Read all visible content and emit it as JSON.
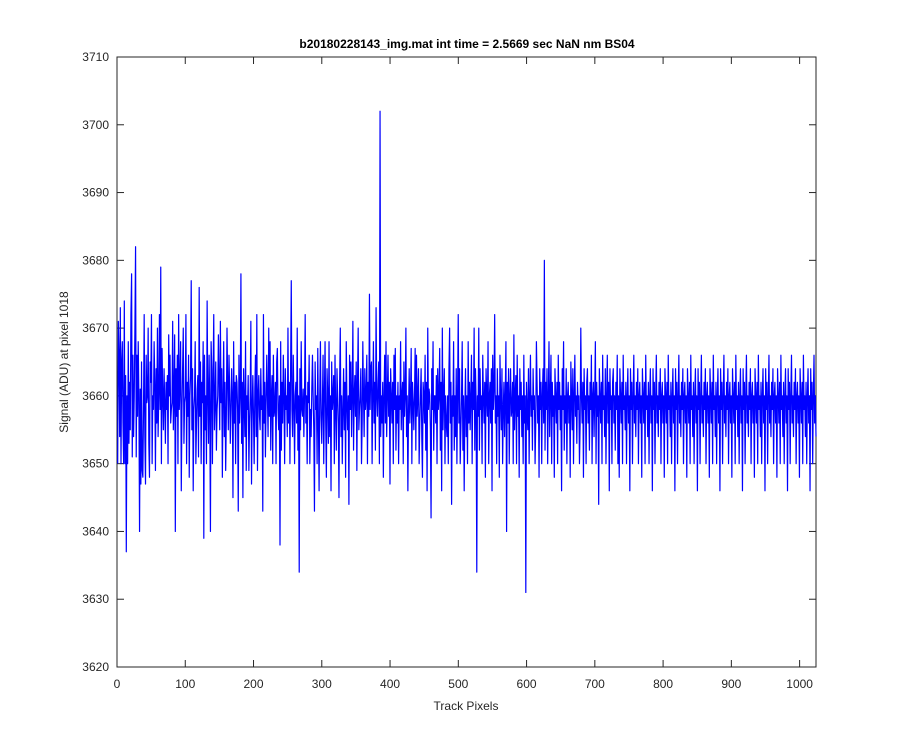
{
  "chart_data": {
    "type": "line",
    "title": "b20180228143_img.mat int time = 2.5669 sec  NaN nm BS04",
    "xlabel": "Track Pixels",
    "ylabel": "Signal (ADU) at pixel 1018",
    "xlim": [
      0,
      1024
    ],
    "ylim": [
      3620,
      3710
    ],
    "xticks": [
      0,
      100,
      200,
      300,
      400,
      500,
      600,
      700,
      800,
      900,
      1000
    ],
    "yticks": [
      3620,
      3630,
      3640,
      3650,
      3660,
      3670,
      3680,
      3690,
      3700,
      3710
    ],
    "grid": false,
    "series": [
      {
        "color": "#0000ff",
        "sampling_note_free": true,
        "x_start": 1,
        "x_step": 1,
        "values": [
          3650,
          3671,
          3666,
          3654,
          3673,
          3650,
          3665,
          3668,
          3656,
          3650,
          3674,
          3650,
          3663,
          3637,
          3660,
          3650,
          3668,
          3653,
          3662,
          3655,
          3672,
          3678,
          3651,
          3666,
          3654,
          3660,
          3670,
          3682,
          3651,
          3666,
          3657,
          3668,
          3660,
          3640,
          3661,
          3647,
          3665,
          3649,
          3648,
          3658,
          3672,
          3654,
          3647,
          3666,
          3659,
          3660,
          3670,
          3653,
          3648,
          3665,
          3662,
          3672,
          3650,
          3660,
          3658,
          3668,
          3662,
          3649,
          3664,
          3656,
          3670,
          3654,
          3660,
          3672,
          3658,
          3679,
          3650,
          3667,
          3660,
          3655,
          3664,
          3659,
          3653,
          3662,
          3658,
          3663,
          3650,
          3669,
          3660,
          3666,
          3656,
          3658,
          3659,
          3671,
          3655,
          3660,
          3669,
          3640,
          3664,
          3657,
          3666,
          3650,
          3672,
          3658,
          3662,
          3668,
          3646,
          3658,
          3664,
          3670,
          3653,
          3659,
          3660,
          3672,
          3650,
          3662,
          3657,
          3666,
          3648,
          3660,
          3663,
          3677,
          3655,
          3664,
          3646,
          3658,
          3660,
          3668,
          3650,
          3656,
          3661,
          3663,
          3651,
          3676,
          3657,
          3665,
          3650,
          3662,
          3659,
          3668,
          3639,
          3666,
          3655,
          3660,
          3650,
          3674,
          3660,
          3653,
          3666,
          3658,
          3640,
          3668,
          3664,
          3650,
          3663,
          3672,
          3655,
          3659,
          3665,
          3652,
          3658,
          3660,
          3669,
          3662,
          3655,
          3671,
          3659,
          3664,
          3648,
          3660,
          3668,
          3654,
          3662,
          3649,
          3657,
          3670,
          3662,
          3655,
          3666,
          3661,
          3653,
          3658,
          3664,
          3660,
          3645,
          3668,
          3656,
          3662,
          3650,
          3663,
          3662,
          3658,
          3643,
          3666,
          3656,
          3660,
          3678,
          3653,
          3662,
          3645,
          3664,
          3659,
          3654,
          3668,
          3649,
          3660,
          3658,
          3663,
          3649,
          3656,
          3660,
          3671,
          3647,
          3658,
          3663,
          3657,
          3650,
          3661,
          3666,
          3654,
          3672,
          3649,
          3660,
          3663,
          3657,
          3655,
          3664,
          3658,
          3660,
          3643,
          3672,
          3656,
          3662,
          3651,
          3659,
          3666,
          3660,
          3654,
          3670,
          3657,
          3668,
          3652,
          3660,
          3663,
          3650,
          3666,
          3657,
          3658,
          3662,
          3650,
          3665,
          3667,
          3658,
          3655,
          3660,
          3638,
          3668,
          3652,
          3662,
          3656,
          3666,
          3660,
          3650,
          3664,
          3658,
          3660,
          3654,
          3670,
          3656,
          3662,
          3650,
          3664,
          3677,
          3658,
          3654,
          3666,
          3659,
          3650,
          3660,
          3662,
          3656,
          3670,
          3652,
          3660,
          3634,
          3664,
          3655,
          3668,
          3658,
          3657,
          3661,
          3654,
          3660,
          3672,
          3656,
          3660,
          3650,
          3662,
          3659,
          3666,
          3650,
          3658,
          3654,
          3661,
          3666,
          3660,
          3655,
          3643,
          3665,
          3658,
          3660,
          3650,
          3667,
          3656,
          3646,
          3660,
          3668,
          3657,
          3653,
          3659,
          3666,
          3650,
          3660,
          3668,
          3656,
          3648,
          3664,
          3660,
          3653,
          3668,
          3654,
          3660,
          3646,
          3665,
          3658,
          3660,
          3663,
          3650,
          3666,
          3658,
          3652,
          3664,
          3660,
          3656,
          3645,
          3662,
          3670,
          3654,
          3660,
          3650,
          3658,
          3664,
          3655,
          3662,
          3648,
          3668,
          3659,
          3655,
          3660,
          3644,
          3666,
          3658,
          3665,
          3654,
          3660,
          3671,
          3652,
          3660,
          3663,
          3657,
          3665,
          3649,
          3662,
          3670,
          3655,
          3658,
          3660,
          3664,
          3650,
          3656,
          3668,
          3660,
          3654,
          3664,
          3658,
          3660,
          3666,
          3650,
          3662,
          3657,
          3675,
          3658,
          3664,
          3665,
          3650,
          3660,
          3668,
          3656,
          3662,
          3652,
          3673,
          3660,
          3657,
          3662,
          3665,
          3650,
          3702,
          3654,
          3660,
          3656,
          3662,
          3648,
          3660,
          3666,
          3656,
          3668,
          3654,
          3660,
          3666,
          3657,
          3662,
          3647,
          3664,
          3660,
          3656,
          3662,
          3650,
          3666,
          3658,
          3667,
          3652,
          3660,
          3656,
          3662,
          3650,
          3660,
          3658,
          3668,
          3655,
          3660,
          3662,
          3650,
          3665,
          3657,
          3660,
          3670,
          3654,
          3660,
          3646,
          3658,
          3664,
          3656,
          3660,
          3667,
          3650,
          3662,
          3659,
          3655,
          3660,
          3667,
          3652,
          3666,
          3657,
          3660,
          3664,
          3650,
          3656,
          3660,
          3664,
          3654,
          3648,
          3662,
          3660,
          3656,
          3666,
          3652,
          3662,
          3646,
          3670,
          3658,
          3661,
          3660,
          3655,
          3642,
          3664,
          3658,
          3668,
          3652,
          3660,
          3660,
          3656,
          3663,
          3650,
          3664,
          3658,
          3660,
          3667,
          3652,
          3662,
          3646,
          3670,
          3655,
          3660,
          3664,
          3650,
          3660,
          3656,
          3654,
          3660,
          3650,
          3664,
          3670,
          3656,
          3662,
          3644,
          3660,
          3657,
          3668,
          3652,
          3660,
          3654,
          3664,
          3650,
          3660,
          3672,
          3656,
          3664,
          3650,
          3655,
          3660,
          3668,
          3652,
          3660,
          3646,
          3658,
          3664,
          3654,
          3660,
          3650,
          3668,
          3656,
          3662,
          3655,
          3660,
          3666,
          3650,
          3662,
          3658,
          3670,
          3652,
          3664,
          3659,
          3634,
          3660,
          3657,
          3670,
          3652,
          3664,
          3658,
          3660,
          3650,
          3666,
          3660,
          3656,
          3662,
          3648,
          3664,
          3660,
          3657,
          3668,
          3650,
          3660,
          3662,
          3656,
          3664,
          3646,
          3666,
          3658,
          3661,
          3672,
          3656,
          3660,
          3650,
          3664,
          3657,
          3660,
          3648,
          3666,
          3660,
          3655,
          3664,
          3650,
          3658,
          3662,
          3654,
          3660,
          3668,
          3640,
          3662,
          3656,
          3664,
          3650,
          3660,
          3664,
          3657,
          3658,
          3662,
          3650,
          3669,
          3655,
          3660,
          3663,
          3650,
          3666,
          3657,
          3660,
          3648,
          3664,
          3658,
          3662,
          3654,
          3660,
          3650,
          3666,
          3656,
          3660,
          3631,
          3662,
          3658,
          3655,
          3664,
          3650,
          3660,
          3666,
          3657,
          3660,
          3652,
          3664,
          3658,
          3660,
          3650,
          3656,
          3668,
          3662,
          3656,
          3660,
          3648,
          3664,
          3658,
          3662,
          3650,
          3660,
          3664,
          3656,
          3680,
          3652,
          3662,
          3658,
          3664,
          3650,
          3660,
          3668,
          3654,
          3660,
          3666,
          3650,
          3662,
          3657,
          3660,
          3648,
          3664,
          3660,
          3656,
          3662,
          3650,
          3666,
          3658,
          3662,
          3655,
          3660,
          3646,
          3664,
          3658,
          3668,
          3652,
          3660,
          3656,
          3664,
          3650,
          3660,
          3662,
          3656,
          3660,
          3648,
          3665,
          3660,
          3655,
          3664,
          3650,
          3660,
          3666,
          3657,
          3660,
          3653,
          3662,
          3658,
          3660,
          3650,
          3656,
          3670,
          3660,
          3656,
          3662,
          3648,
          3664,
          3658,
          3660,
          3650,
          3662,
          3664,
          3656,
          3660,
          3652,
          3662,
          3658,
          3666,
          3650,
          3660,
          3662,
          3654,
          3660,
          3668,
          3650,
          3662,
          3657,
          3660,
          3644,
          3664,
          3660,
          3656,
          3662,
          3650,
          3666,
          3658,
          3660,
          3654,
          3664,
          3650,
          3660,
          3666,
          3656,
          3662,
          3646,
          3664,
          3658,
          3660,
          3650,
          3662,
          3664,
          3656,
          3660,
          3652,
          3662,
          3658,
          3666,
          3650,
          3660,
          3648,
          3664,
          3660,
          3656,
          3662,
          3650,
          3666,
          3658,
          3660,
          3655,
          3662,
          3650,
          3660,
          3664,
          3656,
          3660,
          3646,
          3664,
          3658,
          3662,
          3650,
          3660,
          3666,
          3656,
          3660,
          3654,
          3662,
          3658,
          3664,
          3650,
          3660,
          3662,
          3656,
          3660,
          3648,
          3664,
          3660,
          3656,
          3662,
          3650,
          3666,
          3658,
          3660,
          3654,
          3662,
          3650,
          3660,
          3664,
          3656,
          3660,
          3646,
          3664,
          3658,
          3662,
          3650,
          3660,
          3666,
          3656,
          3660,
          3654,
          3662,
          3658,
          3664,
          3650,
          3660,
          3662,
          3656,
          3660,
          3648,
          3664,
          3660,
          3656,
          3662,
          3650,
          3666,
          3658,
          3660,
          3654,
          3662,
          3650,
          3660,
          3664,
          3656,
          3660,
          3646,
          3664,
          3658,
          3662,
          3650,
          3660,
          3666,
          3656,
          3660,
          3654,
          3662,
          3658,
          3664,
          3650,
          3660,
          3662,
          3656,
          3660,
          3648,
          3664,
          3660,
          3656,
          3662,
          3650,
          3666,
          3658,
          3660,
          3654,
          3662,
          3650,
          3660,
          3664,
          3656,
          3660,
          3646,
          3664,
          3658,
          3662,
          3650,
          3660,
          3666,
          3656,
          3660,
          3654,
          3662,
          3658,
          3664,
          3650,
          3660,
          3662,
          3656,
          3660,
          3648,
          3664,
          3660,
          3656,
          3662,
          3650,
          3666,
          3658,
          3660,
          3654,
          3662,
          3650,
          3660,
          3664,
          3656,
          3660,
          3646,
          3664,
          3658,
          3662,
          3650,
          3660,
          3666,
          3656,
          3660,
          3654,
          3662,
          3658,
          3664,
          3650,
          3660,
          3662,
          3656,
          3660,
          3648,
          3664,
          3660,
          3656,
          3662,
          3650,
          3666,
          3658,
          3660,
          3654,
          3662,
          3650,
          3660,
          3664,
          3656,
          3660,
          3646,
          3664,
          3658,
          3662,
          3650,
          3660,
          3666,
          3656,
          3660,
          3654,
          3662,
          3658,
          3664,
          3650,
          3660,
          3662,
          3656,
          3660,
          3648,
          3664,
          3660,
          3656,
          3662,
          3650,
          3666,
          3658,
          3660,
          3654,
          3662,
          3650,
          3660,
          3664,
          3656,
          3660,
          3646,
          3664,
          3658,
          3662,
          3650,
          3660,
          3666,
          3656,
          3660,
          3654,
          3662,
          3658,
          3664,
          3650,
          3660,
          3662,
          3656,
          3660,
          3648,
          3664,
          3660,
          3656,
          3662,
          3650,
          3666,
          3658,
          3660,
          3654,
          3662,
          3650,
          3660,
          3664,
          3656,
          3660,
          3646,
          3664,
          3658,
          3662,
          3650,
          3660,
          3666,
          3656,
          3660,
          3654,
          3662,
          3658,
          3664,
          3650,
          3660,
          3662,
          3656,
          3660,
          3648,
          3664,
          3660,
          3656,
          3662,
          3650,
          3666,
          3658,
          3660,
          3654,
          3662,
          3650,
          3660,
          3664,
          3656,
          3660,
          3646,
          3664,
          3658,
          3662,
          3650,
          3660,
          3666,
          3656,
          3660,
          3654
        ]
      }
    ]
  }
}
